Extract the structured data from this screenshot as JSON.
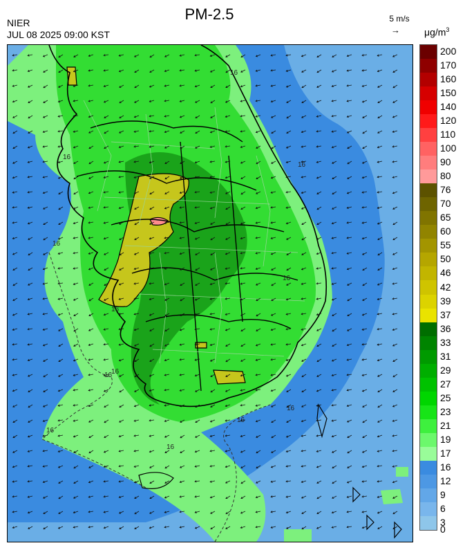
{
  "header": {
    "title": "PM-2.5",
    "agency": "NIER",
    "datetime": "JUL 08 2025 09:00 KST",
    "wind_reference": "5 m/s",
    "wind_reference_arrow": "→",
    "unit_base": "μg/m",
    "unit_exp": "3"
  },
  "colors": {
    "sea_light": "#8ec6ea",
    "sea_mid": "#6aaee6",
    "sea_dark": "#3a8be0",
    "land_light": "#7df07d",
    "land_green": "#33dd33",
    "land_dark": "#1aa31a",
    "yellow": "#c6c61c",
    "pink": "#ff8c8c"
  },
  "map": {
    "contour_labels": [
      "16",
      "16",
      "16",
      "16",
      "16",
      "16",
      "16",
      "16",
      "16",
      "16",
      "16",
      "16"
    ],
    "wind": {
      "u": -1.2,
      "v": -0.45
    }
  },
  "legend": [
    {
      "label": "200",
      "color": "#6b0000"
    },
    {
      "label": "170",
      "color": "#8f0000"
    },
    {
      "label": "160",
      "color": "#b30000"
    },
    {
      "label": "150",
      "color": "#d60000"
    },
    {
      "label": "140",
      "color": "#f00000"
    },
    {
      "label": "120",
      "color": "#ff1a1a"
    },
    {
      "label": "110",
      "color": "#ff4040"
    },
    {
      "label": "100",
      "color": "#ff6262"
    },
    {
      "label": "90",
      "color": "#ff7d7d"
    },
    {
      "label": "80",
      "color": "#ff9a9a"
    },
    {
      "label": "76",
      "color": "#5c5200"
    },
    {
      "label": "70",
      "color": "#6e6400"
    },
    {
      "label": "65",
      "color": "#807400"
    },
    {
      "label": "60",
      "color": "#918400"
    },
    {
      "label": "55",
      "color": "#a39500"
    },
    {
      "label": "50",
      "color": "#b5a600"
    },
    {
      "label": "46",
      "color": "#c2b500"
    },
    {
      "label": "42",
      "color": "#cfc400"
    },
    {
      "label": "39",
      "color": "#dcd300"
    },
    {
      "label": "37",
      "color": "#eae300"
    },
    {
      "label": "36",
      "color": "#006e00"
    },
    {
      "label": "33",
      "color": "#008400"
    },
    {
      "label": "31",
      "color": "#009a00"
    },
    {
      "label": "29",
      "color": "#00ae00"
    },
    {
      "label": "27",
      "color": "#00c200"
    },
    {
      "label": "25",
      "color": "#00d600"
    },
    {
      "label": "23",
      "color": "#17e417"
    },
    {
      "label": "21",
      "color": "#3ef03e"
    },
    {
      "label": "19",
      "color": "#6cf86c"
    },
    {
      "label": "17",
      "color": "#99fc99"
    },
    {
      "label": "16",
      "color": "#3a8be0"
    },
    {
      "label": "12",
      "color": "#4d98e4"
    },
    {
      "label": "9",
      "color": "#62a7e8"
    },
    {
      "label": "6",
      "color": "#79b6ec"
    },
    {
      "label": "3",
      "color": "#8ec6ea"
    },
    {
      "label": "0",
      "color": "#8ec6ea"
    }
  ]
}
